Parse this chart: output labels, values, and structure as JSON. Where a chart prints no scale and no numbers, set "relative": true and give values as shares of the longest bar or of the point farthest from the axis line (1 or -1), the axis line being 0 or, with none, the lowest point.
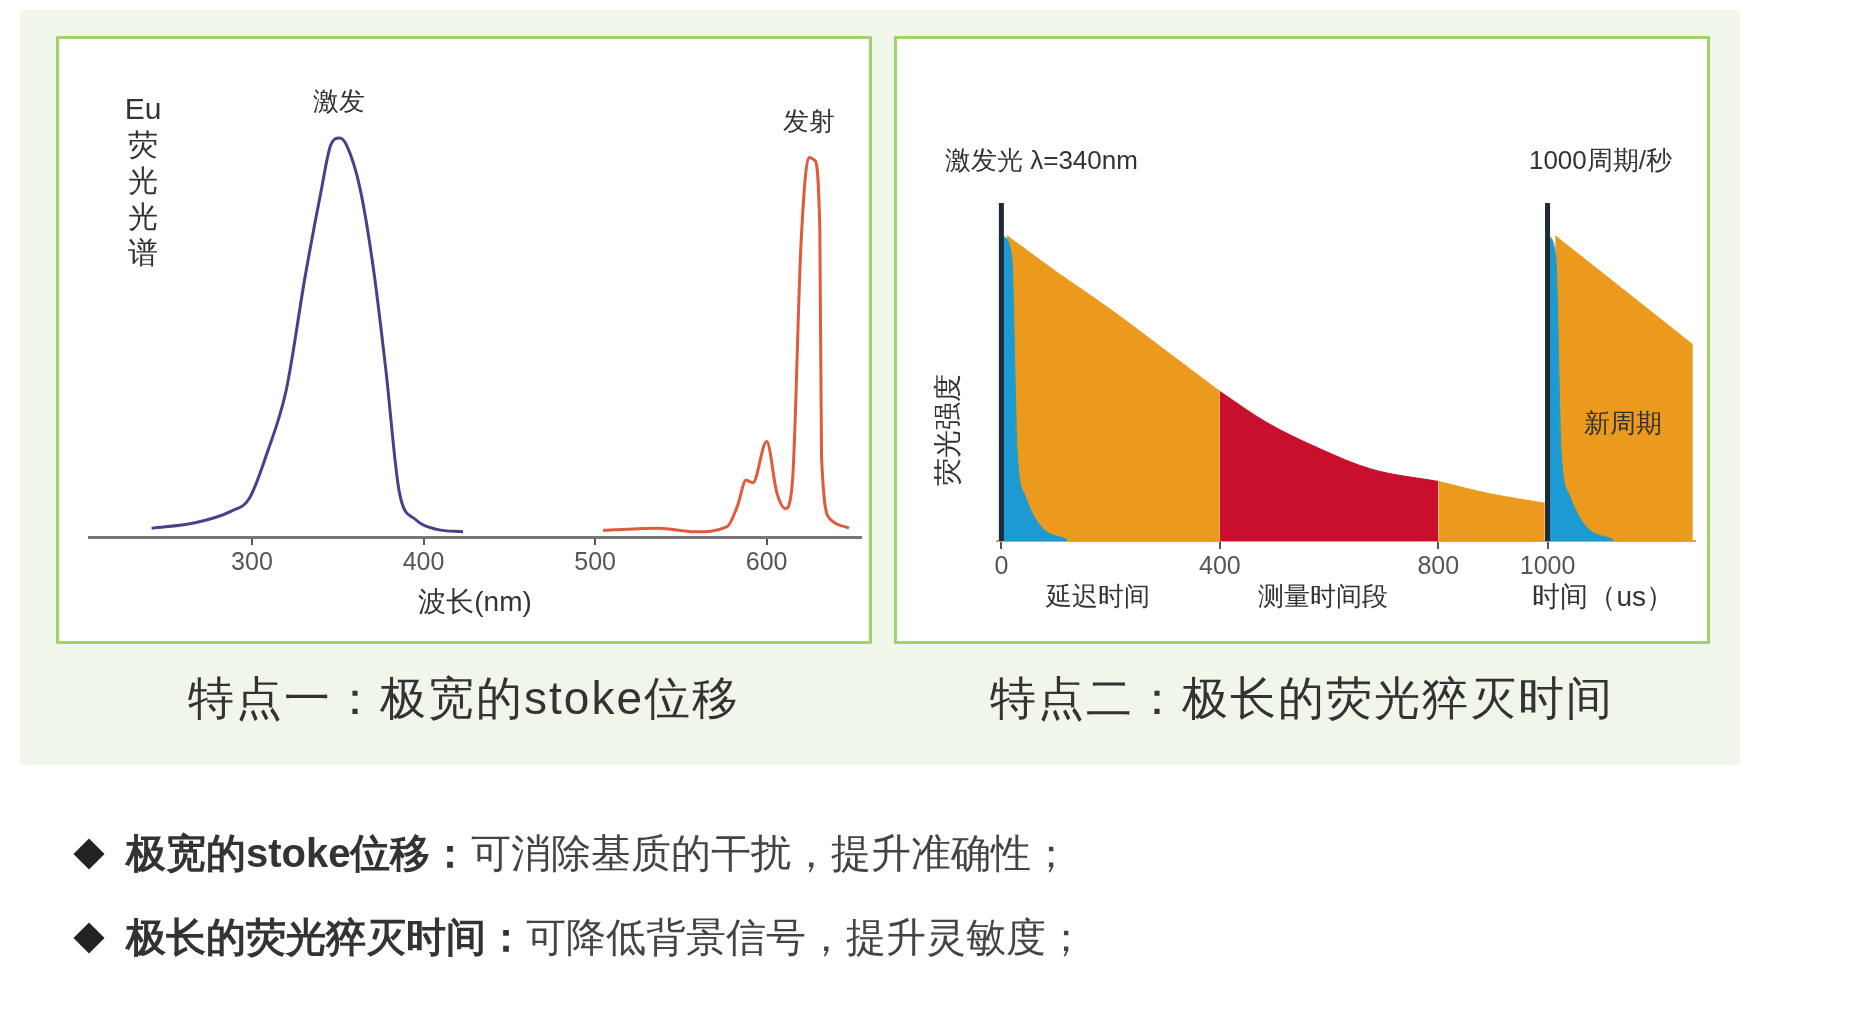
{
  "chart_data": [
    {
      "type": "line",
      "title": "特点一：极宽的stoke位移",
      "xlabel": "波长(nm)",
      "ylabel": "Eu荧光光谱",
      "relative": true,
      "xlim": [
        205,
        655
      ],
      "xticks": [
        300,
        400,
        500,
        600
      ],
      "grid": false,
      "legend": false,
      "marker": "none",
      "line_style": "solid",
      "series": [
        {
          "name": "激发",
          "color": "#4b3f8c",
          "x": [
            241.5,
            266,
            288,
            298.5,
            309,
            320,
            331,
            340,
            346,
            351,
            355,
            363,
            371,
            378,
            386,
            395,
            408,
            423
          ],
          "values": [
            0.022,
            0.035,
            0.065,
            0.097,
            0.213,
            0.369,
            0.653,
            0.86,
            0.983,
            1,
            0.983,
            0.873,
            0.666,
            0.42,
            0.11,
            0.045,
            0.019,
            0.013
          ]
        },
        {
          "name": "发射",
          "color": "#e05a3c",
          "x": [
            504.6,
            537,
            558,
            577,
            583,
            588,
            592,
            600,
            606,
            611,
            615,
            620,
            624.6,
            628,
            631,
            632,
            637,
            648
          ],
          "values": [
            0.017,
            0.022,
            0.013,
            0.026,
            0.078,
            0.142,
            0.136,
            0.239,
            0.11,
            0.071,
            0.136,
            0.731,
            0.951,
            0.944,
            0.77,
            0.2,
            0.045,
            0.022
          ]
        }
      ]
    },
    {
      "type": "area",
      "title": "特点二：极长的荧光猝灭时间",
      "xlabel": "时间（us）",
      "ylabel": "荧光强度",
      "relative": true,
      "xlim": [
        -8,
        1270
      ],
      "xticks": [
        0,
        400,
        800,
        1000
      ],
      "grid": false,
      "legend": false,
      "marker": "none",
      "ref_lines": [
        {
          "axis": "x",
          "value": 0,
          "color": "#1e2a36"
        },
        {
          "axis": "x",
          "value": 1000,
          "color": "#1e2a36"
        }
      ],
      "annotations": [
        "激发光 λ=340nm",
        "1000周期/秒",
        "延迟时间",
        "测量时间段",
        "新周期"
      ],
      "series": [
        {
          "color": "#ec9a1e",
          "x": [
            10,
            101,
            197,
            293,
            400,
            450,
            800,
            899,
            995,
            1000,
            1014,
            1266
          ],
          "values": [
            1,
            0.881,
            0.762,
            0.634,
            0.49,
            null,
            0.195,
            0.153,
            0.124,
            null,
            1,
            0.643
          ]
        },
        {
          "color": "#c8102e",
          "x": [
            400,
            486,
            582,
            678,
            800
          ],
          "values": [
            0.49,
            0.388,
            0.303,
            0.235,
            0.195
          ]
        },
        {
          "color": "#1b9bd1",
          "x": [
            2,
            19,
            29,
            43,
            72,
            120,
            500,
            1002,
            1015,
            1025,
            1040,
            1070,
            1120
          ],
          "values": [
            1,
            0.93,
            0.29,
            0.15,
            0.048,
            0.005,
            null,
            1,
            0.93,
            0.29,
            0.15,
            0.048,
            0.005
          ]
        }
      ]
    },
    {
      "type": "other",
      "annotations": [
        "极宽的stoke位移：可消除基质的干扰，提升准确性；",
        "极长的荧光猝灭时间：可降低背景信号，提升灵敏度；"
      ]
    }
  ]
}
